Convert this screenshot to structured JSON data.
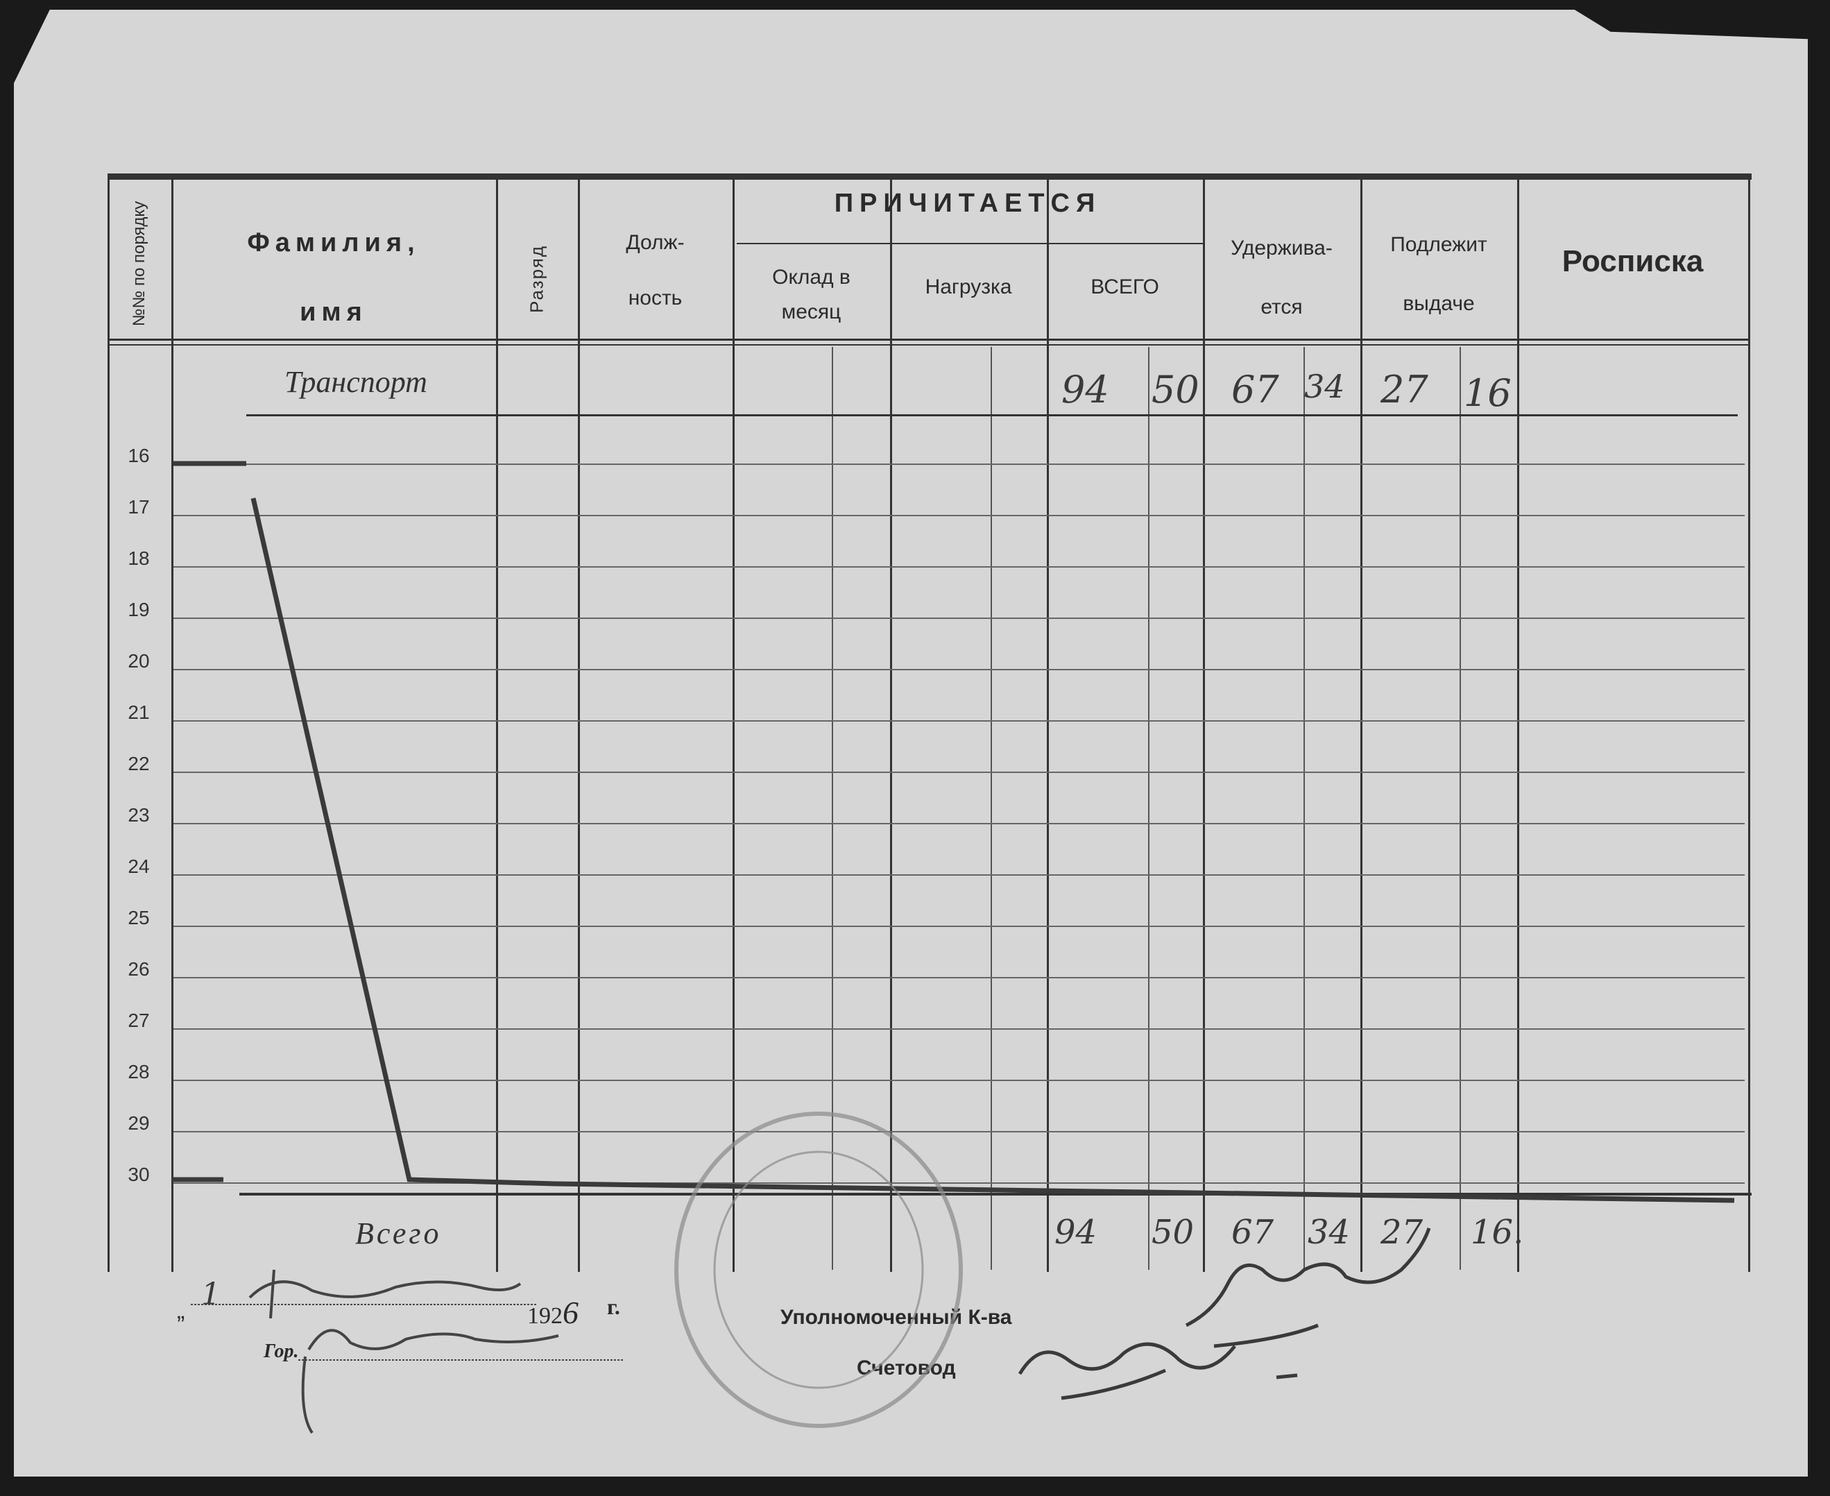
{
  "header": {
    "number_col": "№№ по порядку",
    "name_col_line1": "Фамилия,",
    "name_col_line2": "имя",
    "rank_col": "Разряд",
    "position_col_line1": "Долж-",
    "position_col_line2": "ность",
    "due_group": "ПРИЧИТАЕТСЯ",
    "salary_col_line1": "Оклад в",
    "salary_col_line2": "месяц",
    "load_col": "Нагрузка",
    "total_col": "ВСЕГО",
    "withheld_col_line1": "Удержива-",
    "withheld_col_line2": "ется",
    "payable_col_line1": "Подлежит",
    "payable_col_line2": "выдаче",
    "signature_col": "Росписка"
  },
  "transport_row": {
    "label": "Транспорт",
    "total_rub": "94",
    "total_kop": "50",
    "withheld_rub": "67",
    "withheld_kop": "34",
    "payable_rub": "27",
    "payable_kop": "16"
  },
  "row_numbers": [
    "16",
    "17",
    "18",
    "19",
    "20",
    "21",
    "22",
    "23",
    "24",
    "25",
    "26",
    "27",
    "28",
    "29",
    "30"
  ],
  "total_row": {
    "label": "Всего",
    "total_rub": "94",
    "total_kop": "50",
    "withheld_rub": "67",
    "withheld_kop": "34",
    "payable_rub": "27",
    "payable_kop": "16."
  },
  "footer": {
    "date_quote": "„",
    "date_day": "1",
    "year_prefix": "192",
    "year_suffix": "6",
    "year_unit": "г.",
    "city_label": "Гор.",
    "commissioner_label": "Уполномоченный К-ва",
    "accountant_label": "Счетовод"
  },
  "colors": {
    "paper": "#d6d6d6",
    "ink": "#2b2b2b",
    "background": "#1a1a1a"
  }
}
